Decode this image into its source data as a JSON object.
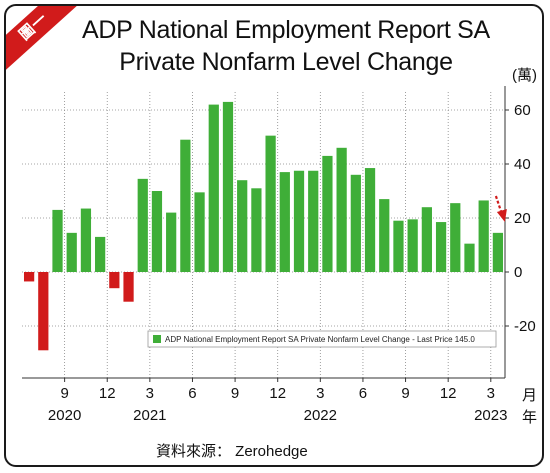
{
  "badge": "圖一",
  "title_line1": "ADP National Employment Report SA",
  "title_line2": "Private Nonfarm Level Change",
  "source": "資料來源：  Zerohedge",
  "unit_label": "(萬)",
  "month_label": "月",
  "year_label": "年",
  "colors": {
    "positive": "#3fae38",
    "negative": "#d11b1b",
    "arrow": "#d11b1b"
  },
  "chart_data": {
    "type": "bar",
    "title": "ADP National Employment Report SA Private Nonfarm Level Change",
    "ylabel": "(萬)",
    "ylim": [
      -38,
      66
    ],
    "yticks": [
      60,
      40,
      20,
      0,
      -20
    ],
    "xticks": [
      {
        "month": "9",
        "index": 3
      },
      {
        "month": "12",
        "index": 6
      },
      {
        "month": "3",
        "index": 9
      },
      {
        "month": "6",
        "index": 12
      },
      {
        "month": "9",
        "index": 15
      },
      {
        "month": "12",
        "index": 18
      },
      {
        "month": "3",
        "index": 21
      },
      {
        "month": "6",
        "index": 24
      },
      {
        "month": "9",
        "index": 27
      },
      {
        "month": "12",
        "index": 30
      },
      {
        "month": "3",
        "index": 33
      }
    ],
    "years": [
      {
        "label": "2020",
        "index": 3
      },
      {
        "label": "2021",
        "index": 9
      },
      {
        "label": "2022",
        "index": 21
      },
      {
        "label": "2023",
        "index": 33
      }
    ],
    "categories": [
      "2020-06",
      "2020-07",
      "2020-08",
      "2020-09",
      "2020-10",
      "2020-11",
      "2020-12",
      "2021-01",
      "2021-02",
      "2021-03",
      "2021-04",
      "2021-05",
      "2021-06",
      "2021-07",
      "2021-08",
      "2021-09",
      "2021-10",
      "2021-11",
      "2021-12",
      "2022-01",
      "2022-02",
      "2022-03",
      "2022-04",
      "2022-05",
      "2022-06",
      "2022-07",
      "2022-08",
      "2022-09",
      "2022-10",
      "2022-11",
      "2022-12",
      "2023-01",
      "2023-02",
      "2023-03"
    ],
    "values": [
      -3.5,
      -29,
      23,
      14.5,
      23.5,
      13,
      -6,
      -11,
      34.5,
      30,
      22,
      49,
      29.5,
      62,
      63,
      34,
      31,
      50.5,
      37,
      37.5,
      37.5,
      43,
      46,
      36,
      38.5,
      27,
      19,
      19.5,
      24,
      18.5,
      25.5,
      10.5,
      26.5,
      14.5
    ],
    "legend": "ADP National Employment Report SA Private Nonfarm Level Change - Last Price 145.0",
    "grid": true
  }
}
